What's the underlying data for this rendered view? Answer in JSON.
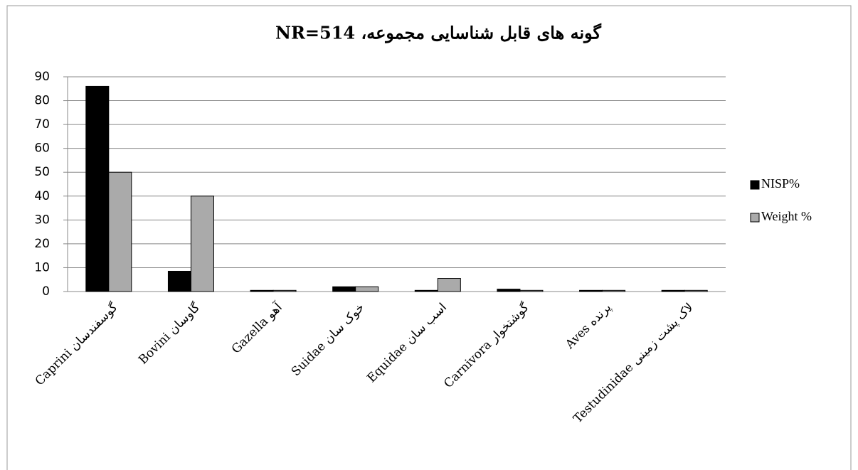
{
  "chart_data": {
    "type": "bar",
    "title": "گونه های قابل شناسایی مجموعه، NR=514",
    "categories": [
      "Caprini گوسفندسان",
      "Bovini گاوسان",
      "Gazella آهو",
      "Suidae خوک سان",
      "Equidae اسب سان",
      "Carnivora گوشتخوار",
      "Aves پرنده",
      "Testudinidae لاک پشت زمینی"
    ],
    "series": [
      {
        "name": "NISP%",
        "color": "#000000",
        "values": [
          86,
          8.5,
          0.5,
          2,
          0.5,
          1,
          0.5,
          0.5
        ]
      },
      {
        "name": "Weight %",
        "color": "#aaaaaa",
        "values": [
          50,
          40,
          0.5,
          2,
          5.5,
          0.5,
          0.5,
          0.5
        ]
      }
    ],
    "ylim": [
      0,
      90
    ],
    "yticks": [
      0,
      10,
      20,
      30,
      40,
      50,
      60,
      70,
      80,
      90
    ],
    "grid": true,
    "legend": "right"
  }
}
